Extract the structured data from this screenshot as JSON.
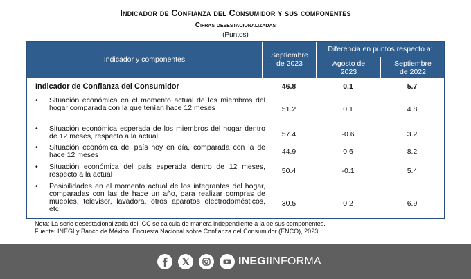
{
  "header": {
    "title": "Indicador de Confianza del Consumidor y sus componentes",
    "subtitle": "Cifras desestacionalizadas",
    "unit": "(Puntos)"
  },
  "table": {
    "col_indicator": "Indicador y componentes",
    "col_period": "Septiembre de 2023",
    "col_diff_group": "Diferencia en puntos respecto a:",
    "col_aug": "Agosto de 2023",
    "col_sep22": "Septiembre de 2022",
    "bullet": "•",
    "rows": [
      {
        "label": "Indicador de Confianza del Consumidor",
        "value": "46.8",
        "diff_aug": "0.1",
        "diff_sep22": "5.7"
      },
      {
        "label": "Situación económica en el momento actual de los miembros del hogar comparada con la que tenían hace 12 meses",
        "value": "51.2",
        "diff_aug": "0.1",
        "diff_sep22": "4.8"
      },
      {
        "label": "Situación económica esperada de los miembros del hogar dentro de 12 meses, respecto a la actual",
        "value": "57.4",
        "diff_aug": "-0.6",
        "diff_sep22": "3.2"
      },
      {
        "label": "Situación económica del país hoy en día, comparada con la de hace 12 meses",
        "value": "44.9",
        "diff_aug": "0.6",
        "diff_sep22": "8.2"
      },
      {
        "label": "Situación económica del país esperada dentro de 12 meses, respecto a la actual",
        "value": "50.4",
        "diff_aug": "-0.1",
        "diff_sep22": "5.4"
      },
      {
        "label": "Posibilidades en el momento actual de los integrantes del hogar, comparadas con las de hace un año, para realizar compras de muebles, televisor, lavadora, otros aparatos electrodomésticos, etc.",
        "value": "30.5",
        "diff_aug": "0.2",
        "diff_sep22": "6.9"
      }
    ]
  },
  "notes": {
    "note": "Nota: La serie desestacionalizada del ICC se calcula de manera independiente a la de sus componentes.",
    "source": "Fuente: INEGI y Banco de México. Encuesta Nacional sobre Confianza del Consumidor (ENCO), 2023."
  },
  "footer": {
    "brand_bold": "INEGI",
    "brand_light": "INFORMA",
    "icons": [
      "facebook-icon",
      "x-icon",
      "instagram-icon",
      "youtube-icon"
    ],
    "background": "#5f5f5f"
  },
  "colors": {
    "header_bg": "#2e5d8e",
    "border": "#2a4f7a"
  }
}
